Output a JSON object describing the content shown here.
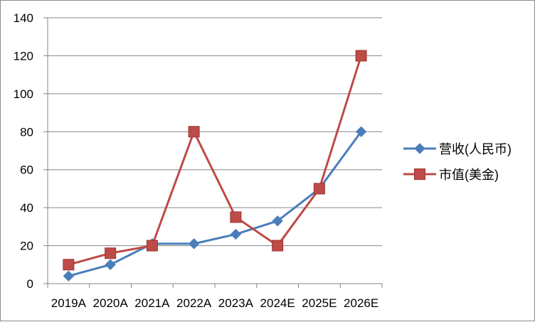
{
  "chart_data": {
    "type": "line",
    "categories": [
      "2019A",
      "2020A",
      "2021A",
      "2022A",
      "2023A",
      "2024E",
      "2025E",
      "2026E"
    ],
    "ylim": [
      0,
      140
    ],
    "yticks": [
      0,
      20,
      40,
      60,
      80,
      100,
      120,
      140
    ],
    "grid": true,
    "legend_position": "right",
    "series": [
      {
        "name": "营收(人民币)",
        "color": "#4a7ebb",
        "marker": "diamond",
        "values": [
          4,
          10,
          21,
          21,
          26,
          33,
          50,
          80
        ]
      },
      {
        "name": "市值(美金)",
        "color": "#be4b48",
        "marker": "square",
        "values": [
          10,
          16,
          20,
          80,
          35,
          20,
          50,
          120
        ]
      }
    ]
  }
}
